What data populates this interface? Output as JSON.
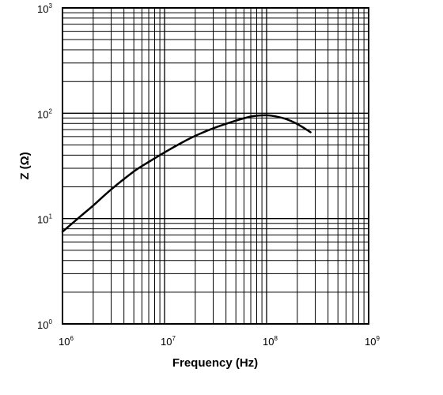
{
  "chart_data": {
    "type": "line",
    "xlabel": "Frequency (Hz)",
    "ylabel": "Z (Ω)",
    "x_scale": "log",
    "y_scale": "log",
    "xlim": [
      1000000,
      1000000000
    ],
    "ylim": [
      1,
      1000
    ],
    "x_ticks": [
      {
        "base": "10",
        "exp": "6",
        "value": 1000000
      },
      {
        "base": "10",
        "exp": "7",
        "value": 10000000
      },
      {
        "base": "10",
        "exp": "8",
        "value": 100000000
      },
      {
        "base": "10",
        "exp": "9",
        "value": 1000000000
      }
    ],
    "y_ticks": [
      {
        "base": "10",
        "exp": "0",
        "value": 1
      },
      {
        "base": "10",
        "exp": "1",
        "value": 10
      },
      {
        "base": "10",
        "exp": "2",
        "value": 100
      },
      {
        "base": "10",
        "exp": "3",
        "value": 1000
      }
    ],
    "grid": true,
    "line_color": "#000000",
    "grid_color": "#000000",
    "series": [
      {
        "x": [
          1000000,
          1500000,
          2000000,
          3000000,
          5000000,
          7000000,
          10000000,
          15000000,
          20000000,
          30000000,
          50000000,
          70000000,
          90000000,
          110000000,
          150000000,
          200000000,
          270000000
        ],
        "y": [
          7.5,
          10.5,
          13.3,
          18.9,
          28,
          34.5,
          42.5,
          53,
          61,
          72,
          85,
          93,
          95.5,
          95,
          89,
          79,
          66
        ]
      }
    ]
  }
}
